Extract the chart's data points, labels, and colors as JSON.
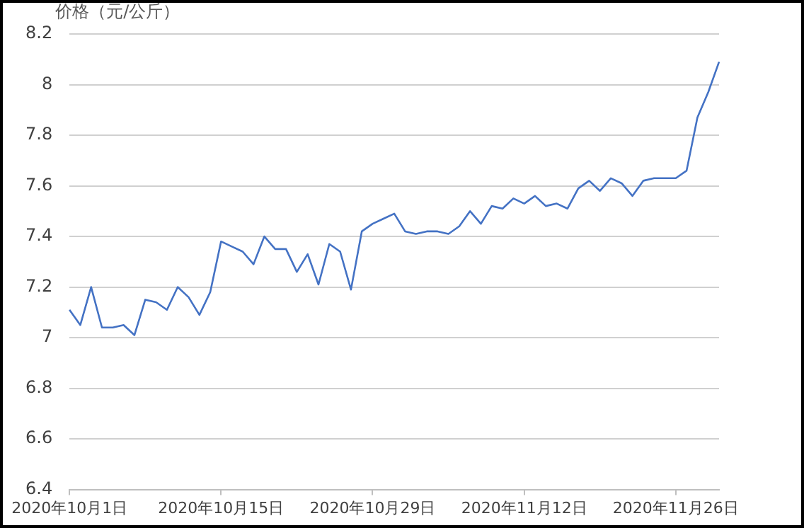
{
  "chart_data": {
    "type": "line",
    "ylabel": "价格（元/公斤）",
    "categories": [
      "2020年10月1日",
      null,
      null,
      null,
      null,
      null,
      null,
      null,
      null,
      null,
      null,
      null,
      null,
      null,
      "2020年10月15日",
      null,
      null,
      null,
      null,
      null,
      null,
      null,
      null,
      null,
      null,
      null,
      null,
      null,
      "2020年10月29日",
      null,
      null,
      null,
      null,
      null,
      null,
      null,
      null,
      null,
      null,
      null,
      null,
      null,
      "2020年11月12日",
      null,
      null,
      null,
      null,
      null,
      null,
      null,
      null,
      null,
      null,
      null,
      null,
      null,
      "2020年11月26日",
      null,
      null,
      null,
      null
    ],
    "series": [
      {
        "color": "#4472c4",
        "values": [
          7.11,
          7.05,
          7.2,
          7.04,
          7.04,
          7.05,
          7.01,
          7.15,
          7.14,
          7.11,
          7.2,
          7.16,
          7.09,
          7.18,
          7.38,
          7.36,
          7.34,
          7.29,
          7.4,
          7.35,
          7.35,
          7.26,
          7.33,
          7.21,
          7.37,
          7.34,
          7.19,
          7.42,
          7.45,
          7.47,
          7.49,
          7.42,
          7.41,
          7.42,
          7.42,
          7.41,
          7.44,
          7.5,
          7.45,
          7.52,
          7.51,
          7.55,
          7.53,
          7.56,
          7.52,
          7.53,
          7.51,
          7.59,
          7.62,
          7.58,
          7.63,
          7.61,
          7.56,
          7.62,
          7.63,
          7.63,
          7.63,
          7.66,
          7.87,
          7.97,
          8.09
        ]
      }
    ],
    "ylim": [
      6.4,
      8.2
    ],
    "yticks": [
      6.4,
      6.6,
      6.8,
      7,
      7.2,
      7.4,
      7.6,
      7.8,
      8,
      8.2
    ],
    "grid": "y",
    "legend": false,
    "marker": "none",
    "line_style": "solid"
  }
}
